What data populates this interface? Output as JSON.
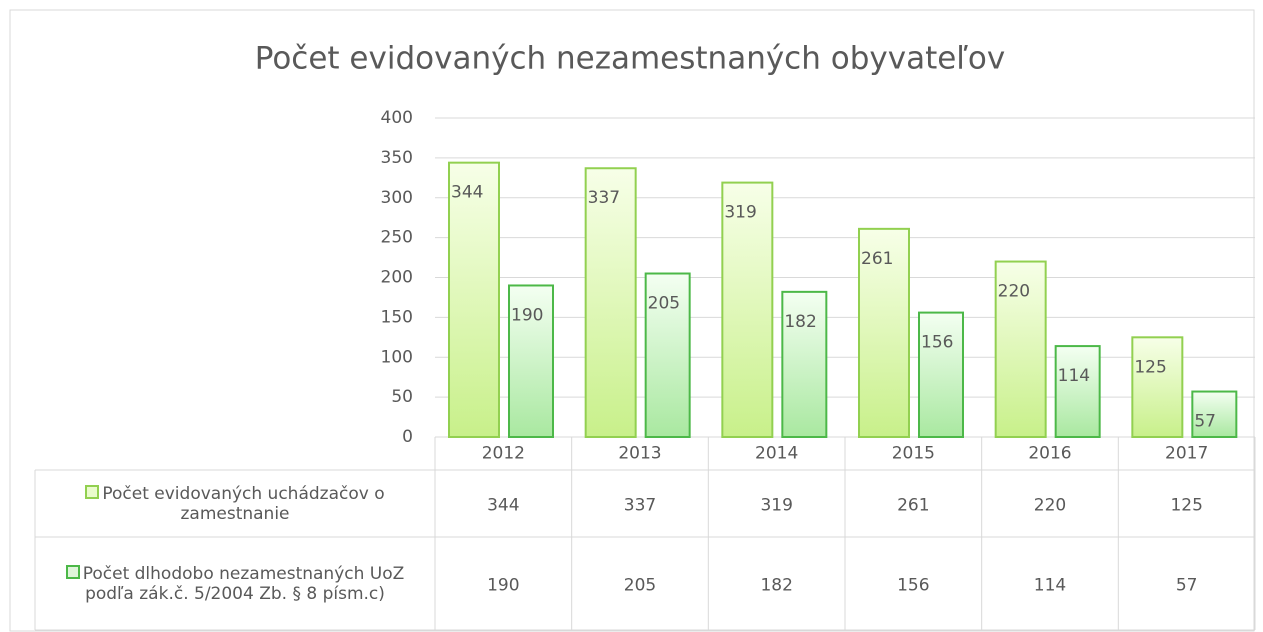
{
  "chart_data": {
    "type": "bar",
    "title": "Počet evidovaných nezamestnaných obyvateľov",
    "categories": [
      "2012",
      "2013",
      "2014",
      "2015",
      "2016",
      "2017"
    ],
    "series": [
      {
        "name": "Počet evidovaných uchádzačov o zamestnanie",
        "color": "#92d050",
        "values": [
          344,
          337,
          319,
          261,
          220,
          125
        ]
      },
      {
        "name": "Počet dlhodobo nezamestnaných UoZ  podľa zák.č. 5/2004 Zb. § 8 písm.c)",
        "color": "#4cb848",
        "values": [
          190,
          205,
          182,
          156,
          114,
          57
        ]
      }
    ],
    "ylim": [
      0,
      400
    ],
    "yticks": [
      0,
      50,
      100,
      150,
      200,
      250,
      300,
      350,
      400
    ],
    "grid": true
  }
}
